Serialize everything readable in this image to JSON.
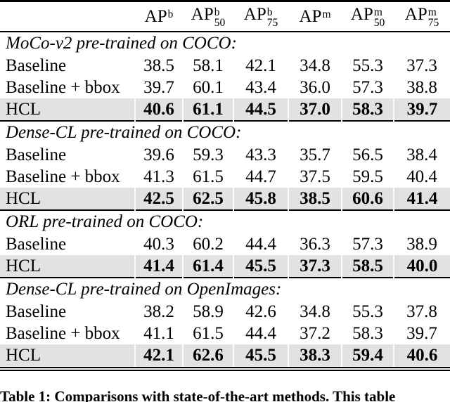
{
  "table": {
    "header": {
      "row_label": "",
      "columns": [
        {
          "base": "AP",
          "sup": "b",
          "sub": ""
        },
        {
          "base": "AP",
          "sup": "b",
          "sub": "50"
        },
        {
          "base": "AP",
          "sup": "b",
          "sub": "75"
        },
        {
          "base": "AP",
          "sup": "m",
          "sub": ""
        },
        {
          "base": "AP",
          "sup": "m",
          "sub": "50"
        },
        {
          "base": "AP",
          "sup": "m",
          "sub": "75"
        }
      ]
    },
    "sections": [
      {
        "title": "MoCo-v2 pre-trained on COCO:",
        "rows": [
          {
            "label": "Baseline",
            "values": [
              "38.5",
              "58.1",
              "42.1",
              "34.8",
              "55.3",
              "37.3"
            ],
            "highlight": false
          },
          {
            "label": "Baseline + bbox",
            "values": [
              "39.7",
              "60.1",
              "43.4",
              "36.0",
              "57.3",
              "38.8"
            ],
            "highlight": false
          },
          {
            "label": "HCL",
            "values": [
              "40.6",
              "61.1",
              "44.5",
              "37.0",
              "58.3",
              "39.7"
            ],
            "highlight": true
          }
        ]
      },
      {
        "title": "Dense-CL pre-trained on COCO:",
        "rows": [
          {
            "label": "Baseline",
            "values": [
              "39.6",
              "59.3",
              "43.3",
              "35.7",
              "56.5",
              "38.4"
            ],
            "highlight": false
          },
          {
            "label": "Baseline + bbox",
            "values": [
              "41.3",
              "61.5",
              "44.7",
              "37.5",
              "59.5",
              "40.4"
            ],
            "highlight": false
          },
          {
            "label": "HCL",
            "values": [
              "42.5",
              "62.5",
              "45.8",
              "38.5",
              "60.6",
              "41.4"
            ],
            "highlight": true
          }
        ]
      },
      {
        "title": "ORL pre-trained on COCO:",
        "rows": [
          {
            "label": "Baseline",
            "values": [
              "40.3",
              "60.2",
              "44.4",
              "36.3",
              "57.3",
              "38.9"
            ],
            "highlight": false
          },
          {
            "label": "HCL",
            "values": [
              "41.4",
              "61.4",
              "45.5",
              "37.3",
              "58.5",
              "40.0"
            ],
            "highlight": true
          }
        ]
      },
      {
        "title": "Dense-CL pre-trained on OpenImages:",
        "rows": [
          {
            "label": "Baseline",
            "values": [
              "38.2",
              "58.9",
              "42.6",
              "34.8",
              "55.3",
              "37.8"
            ],
            "highlight": false
          },
          {
            "label": "Baseline + bbox",
            "values": [
              "41.1",
              "61.5",
              "44.4",
              "37.2",
              "58.3",
              "39.7"
            ],
            "highlight": false
          },
          {
            "label": "HCL",
            "values": [
              "42.1",
              "62.6",
              "45.5",
              "38.3",
              "59.4",
              "40.6"
            ],
            "highlight": true
          }
        ]
      }
    ],
    "caption_bold": "Table 1: Comparisons with state-of-the-art methods.",
    "caption_rest": " This table"
  },
  "colors": {
    "highlight_row": "#e2e2e2",
    "rule": "#000000",
    "text": "#000000",
    "background": "#ffffff"
  }
}
